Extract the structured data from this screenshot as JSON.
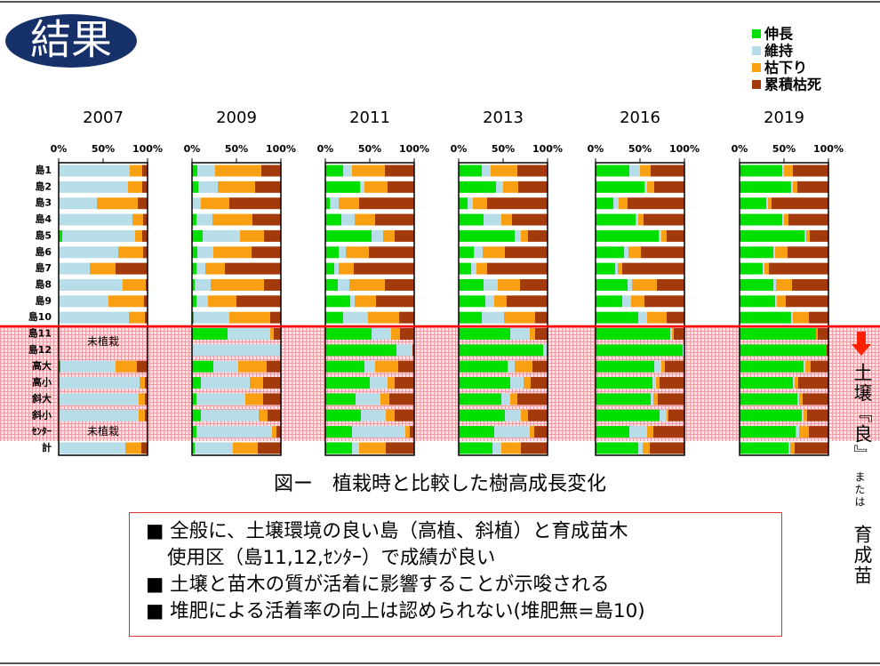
{
  "slide": {
    "title": "結果",
    "caption": "図ー　植栽時と比較した樹高成長変化",
    "side_text": [
      "土壌『良』",
      "または",
      "育成苗"
    ],
    "bullets": [
      [
        "■ 全般に、土壌環境の良い島（高植、斜植）と育成苗木",
        "使用区（島11,12,ｾﾝﾀｰ）で成績が良い"
      ],
      [
        "■ 土壌と苗木の質が活着に影響することが示唆される"
      ],
      [
        "■ 堆肥による活着率の向上は認められない(堆肥無=島10)"
      ]
    ]
  },
  "chart_data": [
    {
      "type": "bar",
      "title": "2007",
      "categories": [
        "島1",
        "島2",
        "島3",
        "島4",
        "島5",
        "島6",
        "島7",
        "島8",
        "島9",
        "島10",
        "島11",
        "島12",
        "高大",
        "高小",
        "斜大",
        "斜小",
        "ｾﾝﾀｰ",
        "計"
      ],
      "annotations": [
        "未植栽",
        "未植栽"
      ],
      "xlim": [
        0,
        100
      ],
      "xticks": [
        {
          "value": 0,
          "label": "0%"
        },
        {
          "value": 50,
          "label": "50%"
        },
        {
          "value": 100,
          "label": "100%"
        }
      ],
      "series": [
        {
          "name": "伸長",
          "color": "#00e000",
          "values": [
            0,
            0,
            0,
            0,
            4,
            0,
            0,
            0,
            0,
            0,
            null,
            null,
            2,
            0,
            0,
            0,
            null,
            0
          ]
        },
        {
          "name": "維持",
          "color": "#b7dde8",
          "values": [
            80,
            78,
            43,
            83,
            82,
            67,
            35,
            72,
            56,
            79,
            null,
            null,
            62,
            91,
            90,
            90,
            null,
            75
          ]
        },
        {
          "name": "枯下り",
          "color": "#f9a012",
          "values": [
            14,
            16,
            46,
            12,
            8,
            28,
            29,
            26,
            40,
            18,
            null,
            null,
            24,
            6,
            7,
            7,
            null,
            18
          ]
        },
        {
          "name": "累積枯死",
          "color": "#a33a0c",
          "values": [
            6,
            6,
            11,
            5,
            6,
            5,
            36,
            2,
            4,
            3,
            null,
            null,
            12,
            3,
            3,
            3,
            null,
            7
          ]
        }
      ]
    },
    {
      "type": "bar",
      "title": "2009",
      "xlim": [
        0,
        100
      ],
      "xticks": [
        {
          "value": 0,
          "label": "0%"
        },
        {
          "value": 50,
          "label": "50%"
        },
        {
          "value": 100,
          "label": "100%"
        }
      ],
      "series": [
        {
          "values": [
            6,
            7,
            0,
            5,
            12,
            6,
            5,
            3,
            5,
            2,
            40,
            0,
            24,
            10,
            5,
            10,
            5,
            3
          ]
        },
        {
          "values": [
            20,
            22,
            10,
            18,
            42,
            18,
            10,
            18,
            13,
            40,
            48,
            100,
            28,
            55,
            55,
            65,
            85,
            43
          ]
        },
        {
          "values": [
            52,
            42,
            32,
            45,
            27,
            43,
            22,
            60,
            32,
            46,
            4,
            0,
            32,
            15,
            20,
            10,
            5,
            28
          ]
        },
        {
          "values": [
            22,
            29,
            58,
            32,
            19,
            33,
            63,
            19,
            50,
            12,
            8,
            0,
            16,
            20,
            20,
            15,
            5,
            26
          ]
        }
      ]
    },
    {
      "type": "bar",
      "title": "2011",
      "xlim": [
        0,
        100
      ],
      "xticks": [
        {
          "value": 0,
          "label": "0%"
        },
        {
          "value": 50,
          "label": "50%"
        },
        {
          "value": 100,
          "label": "100%"
        }
      ],
      "series": [
        {
          "values": [
            20,
            39,
            5,
            18,
            52,
            15,
            10,
            14,
            28,
            20,
            52,
            80,
            44,
            50,
            34,
            40,
            30,
            30
          ]
        },
        {
          "values": [
            10,
            5,
            10,
            15,
            13,
            8,
            5,
            13,
            5,
            28,
            22,
            18,
            12,
            20,
            28,
            28,
            60,
            8
          ]
        },
        {
          "values": [
            37,
            26,
            23,
            23,
            13,
            26,
            17,
            40,
            24,
            35,
            10,
            0,
            26,
            8,
            10,
            10,
            5,
            30
          ]
        },
        {
          "values": [
            33,
            30,
            62,
            44,
            22,
            51,
            68,
            33,
            43,
            17,
            16,
            2,
            18,
            22,
            28,
            22,
            5,
            32
          ]
        }
      ]
    },
    {
      "type": "bar",
      "title": "2013",
      "xlim": [
        0,
        100
      ],
      "xticks": [
        {
          "value": 0,
          "label": "0%"
        },
        {
          "value": 50,
          "label": "50%"
        },
        {
          "value": 100,
          "label": "100%"
        }
      ],
      "series": [
        {
          "values": [
            26,
            42,
            10,
            28,
            63,
            17,
            14,
            28,
            30,
            26,
            58,
            95,
            55,
            58,
            48,
            52,
            40,
            38
          ]
        },
        {
          "values": [
            10,
            8,
            6,
            20,
            7,
            10,
            6,
            16,
            10,
            25,
            22,
            5,
            8,
            15,
            10,
            18,
            40,
            10
          ]
        },
        {
          "values": [
            30,
            17,
            16,
            12,
            8,
            25,
            12,
            25,
            14,
            35,
            6,
            0,
            20,
            8,
            8,
            8,
            5,
            22
          ]
        },
        {
          "values": [
            34,
            33,
            68,
            40,
            22,
            48,
            68,
            31,
            46,
            14,
            14,
            0,
            17,
            19,
            34,
            22,
            15,
            30
          ]
        }
      ]
    },
    {
      "type": "bar",
      "title": "2016",
      "xlim": [
        0,
        100
      ],
      "xticks": [
        {
          "value": 0,
          "label": "0%"
        },
        {
          "value": 50,
          "label": "50%"
        },
        {
          "value": 100,
          "label": "100%"
        }
      ],
      "series": [
        {
          "values": [
            38,
            55,
            20,
            45,
            71,
            32,
            22,
            36,
            30,
            48,
            84,
            98,
            66,
            64,
            62,
            72,
            38,
            48
          ]
        },
        {
          "values": [
            12,
            3,
            6,
            3,
            3,
            5,
            3,
            5,
            10,
            10,
            2,
            2,
            8,
            4,
            3,
            8,
            20,
            5
          ]
        },
        {
          "values": [
            12,
            8,
            10,
            6,
            6,
            14,
            5,
            28,
            15,
            22,
            2,
            0,
            4,
            4,
            5,
            2,
            7,
            8
          ]
        },
        {
          "values": [
            38,
            34,
            64,
            46,
            20,
            49,
            70,
            31,
            45,
            20,
            12,
            0,
            22,
            28,
            30,
            18,
            35,
            39
          ]
        }
      ]
    },
    {
      "type": "bar",
      "title": "2019",
      "xlim": [
        0,
        100
      ],
      "xticks": [
        {
          "value": 0,
          "label": "0%"
        },
        {
          "value": 50,
          "label": "50%"
        },
        {
          "value": 100,
          "label": "100%"
        }
      ],
      "series": [
        {
          "values": [
            48,
            58,
            30,
            48,
            73,
            38,
            26,
            38,
            40,
            58,
            86,
            98,
            72,
            60,
            65,
            70,
            63,
            55
          ]
        },
        {
          "values": [
            2,
            2,
            2,
            2,
            2,
            2,
            2,
            3,
            2,
            2,
            0,
            0,
            2,
            2,
            2,
            2,
            4,
            2
          ]
        },
        {
          "values": [
            10,
            5,
            4,
            5,
            4,
            14,
            5,
            18,
            10,
            18,
            2,
            0,
            6,
            4,
            4,
            4,
            11,
            5
          ]
        },
        {
          "values": [
            40,
            35,
            64,
            45,
            21,
            46,
            67,
            41,
            48,
            22,
            12,
            2,
            20,
            34,
            29,
            24,
            22,
            38
          ]
        }
      ]
    }
  ]
}
